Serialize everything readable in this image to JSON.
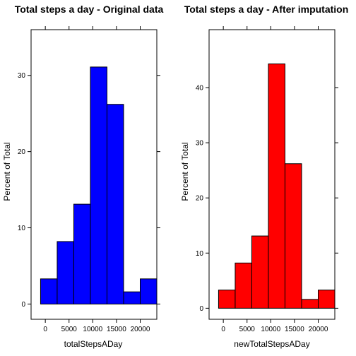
{
  "chart_data": [
    {
      "type": "bar",
      "title": "Total steps a day - Original data",
      "xlabel": "totalStepsADay",
      "ylabel": "Percent of Total",
      "bin_edges": [
        -1000,
        2500,
        6000,
        9500,
        13000,
        16500,
        20000,
        23500
      ],
      "values": [
        3.3,
        8.2,
        13.1,
        31.1,
        26.2,
        1.6,
        3.3
      ],
      "xlim": [
        -3000,
        23500
      ],
      "ylim": [
        -2,
        36
      ],
      "xticks": [
        0,
        5000,
        10000,
        15000,
        20000
      ],
      "yticks": [
        0,
        10,
        20,
        30
      ],
      "bar_color": "#0000ff",
      "grid": false
    },
    {
      "type": "bar",
      "title": "Total steps a day - After imputation",
      "xlabel": "newTotalStepsADay",
      "ylabel": "Percent of Total",
      "bin_edges": [
        -1000,
        2500,
        6000,
        9500,
        13000,
        16500,
        20000,
        23500
      ],
      "values": [
        3.3,
        8.2,
        13.1,
        44.3,
        26.2,
        1.6,
        3.3
      ],
      "xlim": [
        -3000,
        23500
      ],
      "ylim": [
        -2,
        50.5
      ],
      "xticks": [
        0,
        5000,
        10000,
        15000,
        20000
      ],
      "yticks": [
        0,
        10,
        20,
        30,
        40
      ],
      "bar_color": "#ff0000",
      "grid": false
    }
  ]
}
